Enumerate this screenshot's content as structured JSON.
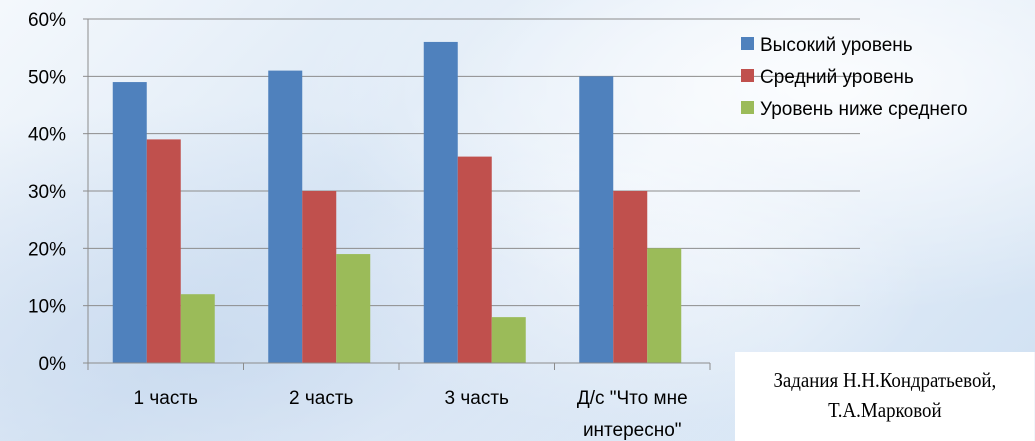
{
  "chart_data": {
    "type": "bar",
    "title": "",
    "xlabel": "",
    "ylabel": "",
    "categories": [
      "1 часть",
      "2 часть",
      "3 часть",
      "Д/с \"Что мне интересно\""
    ],
    "category_lines": [
      [
        "1 часть"
      ],
      [
        "2 часть"
      ],
      [
        "3 часть"
      ],
      [
        "Д/с \"Что мне",
        "интересно\""
      ]
    ],
    "series": [
      {
        "name": "Высокий уровень",
        "color": "#4f81bd",
        "values": [
          49,
          51,
          56,
          50
        ]
      },
      {
        "name": "Средний уровень",
        "color": "#c0504d",
        "values": [
          39,
          30,
          36,
          30
        ]
      },
      {
        "name": "Уровень ниже среднего",
        "color": "#9bbb59",
        "values": [
          12,
          19,
          8,
          20
        ]
      }
    ],
    "ylim": [
      0,
      60
    ],
    "yticks": [
      0,
      10,
      20,
      30,
      40,
      50,
      60
    ],
    "ytick_labels": [
      "0%",
      "10%",
      "20%",
      "30%",
      "40%",
      "50%",
      "60%"
    ],
    "grid": true,
    "legend_position": "right"
  },
  "credit": {
    "line1": "Задания Н.Н.Кондратьевой,",
    "line2": "Т.А.Марковой"
  }
}
